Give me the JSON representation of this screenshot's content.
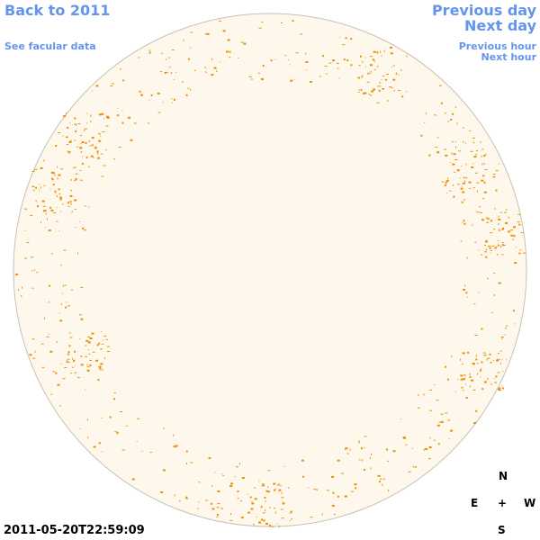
{
  "nav": {
    "back": "Back to 2011",
    "facular": "See facular data",
    "previous_day": "Previous day",
    "next_day": "Next day",
    "previous_hour": "Previous hour",
    "next_hour": "Next hour"
  },
  "timestamp": "2011-05-20T22:59:09",
  "compass": {
    "north": "N",
    "east": "E",
    "center": "+",
    "west": "W",
    "south": "S"
  }
}
